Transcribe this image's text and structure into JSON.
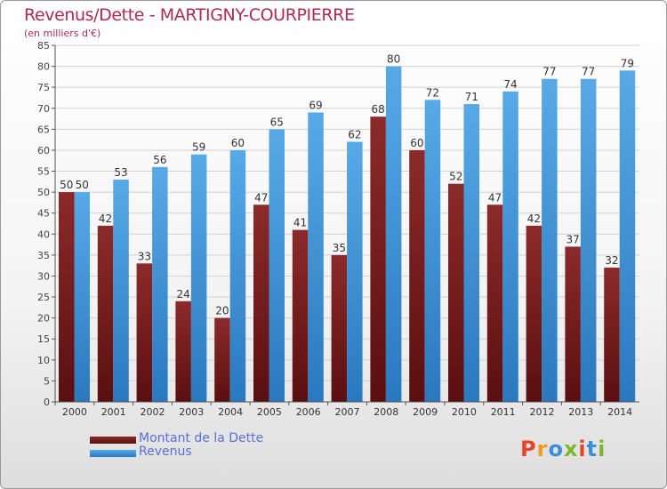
{
  "header": {
    "title": "Revenus/Dette - MARTIGNY-COURPIERRE",
    "subtitle": "(en milliers d'€)"
  },
  "legend": {
    "debt_label": "Montant de la Dette",
    "revenue_label": "Revenus"
  },
  "logo": {
    "letters": [
      "P",
      "r",
      "o",
      "x",
      "i",
      "t",
      "i"
    ],
    "colors": [
      "#e6452c",
      "#f29c1f",
      "#3b8ed8",
      "#7db72f",
      "#e6452c",
      "#3b8ed8",
      "#7db72f"
    ]
  },
  "colors": {
    "debt": "#8c2a2a",
    "debt_dark": "#5a0f10",
    "revenue": "#57aae6",
    "revenue_dark": "#2a78bf"
  },
  "chart_data": {
    "type": "bar",
    "categories": [
      "2000",
      "2001",
      "2002",
      "2003",
      "2004",
      "2005",
      "2006",
      "2007",
      "2008",
      "2009",
      "2010",
      "2011",
      "2012",
      "2013",
      "2014"
    ],
    "series": [
      {
        "name": "Montant de la Dette",
        "values": [
          50,
          42,
          33,
          24,
          20,
          47,
          41,
          35,
          68,
          60,
          52,
          47,
          42,
          37,
          32
        ]
      },
      {
        "name": "Revenus",
        "values": [
          50,
          53,
          56,
          59,
          60,
          65,
          69,
          62,
          80,
          72,
          71,
          74,
          77,
          77,
          79
        ]
      }
    ],
    "ylim": [
      0,
      85
    ],
    "ytick_step": 5,
    "grid": true,
    "legend_position": "bottom-left",
    "title": "Revenus/Dette - MARTIGNY-COURPIERRE",
    "ylabel": "(en milliers d'€)"
  }
}
